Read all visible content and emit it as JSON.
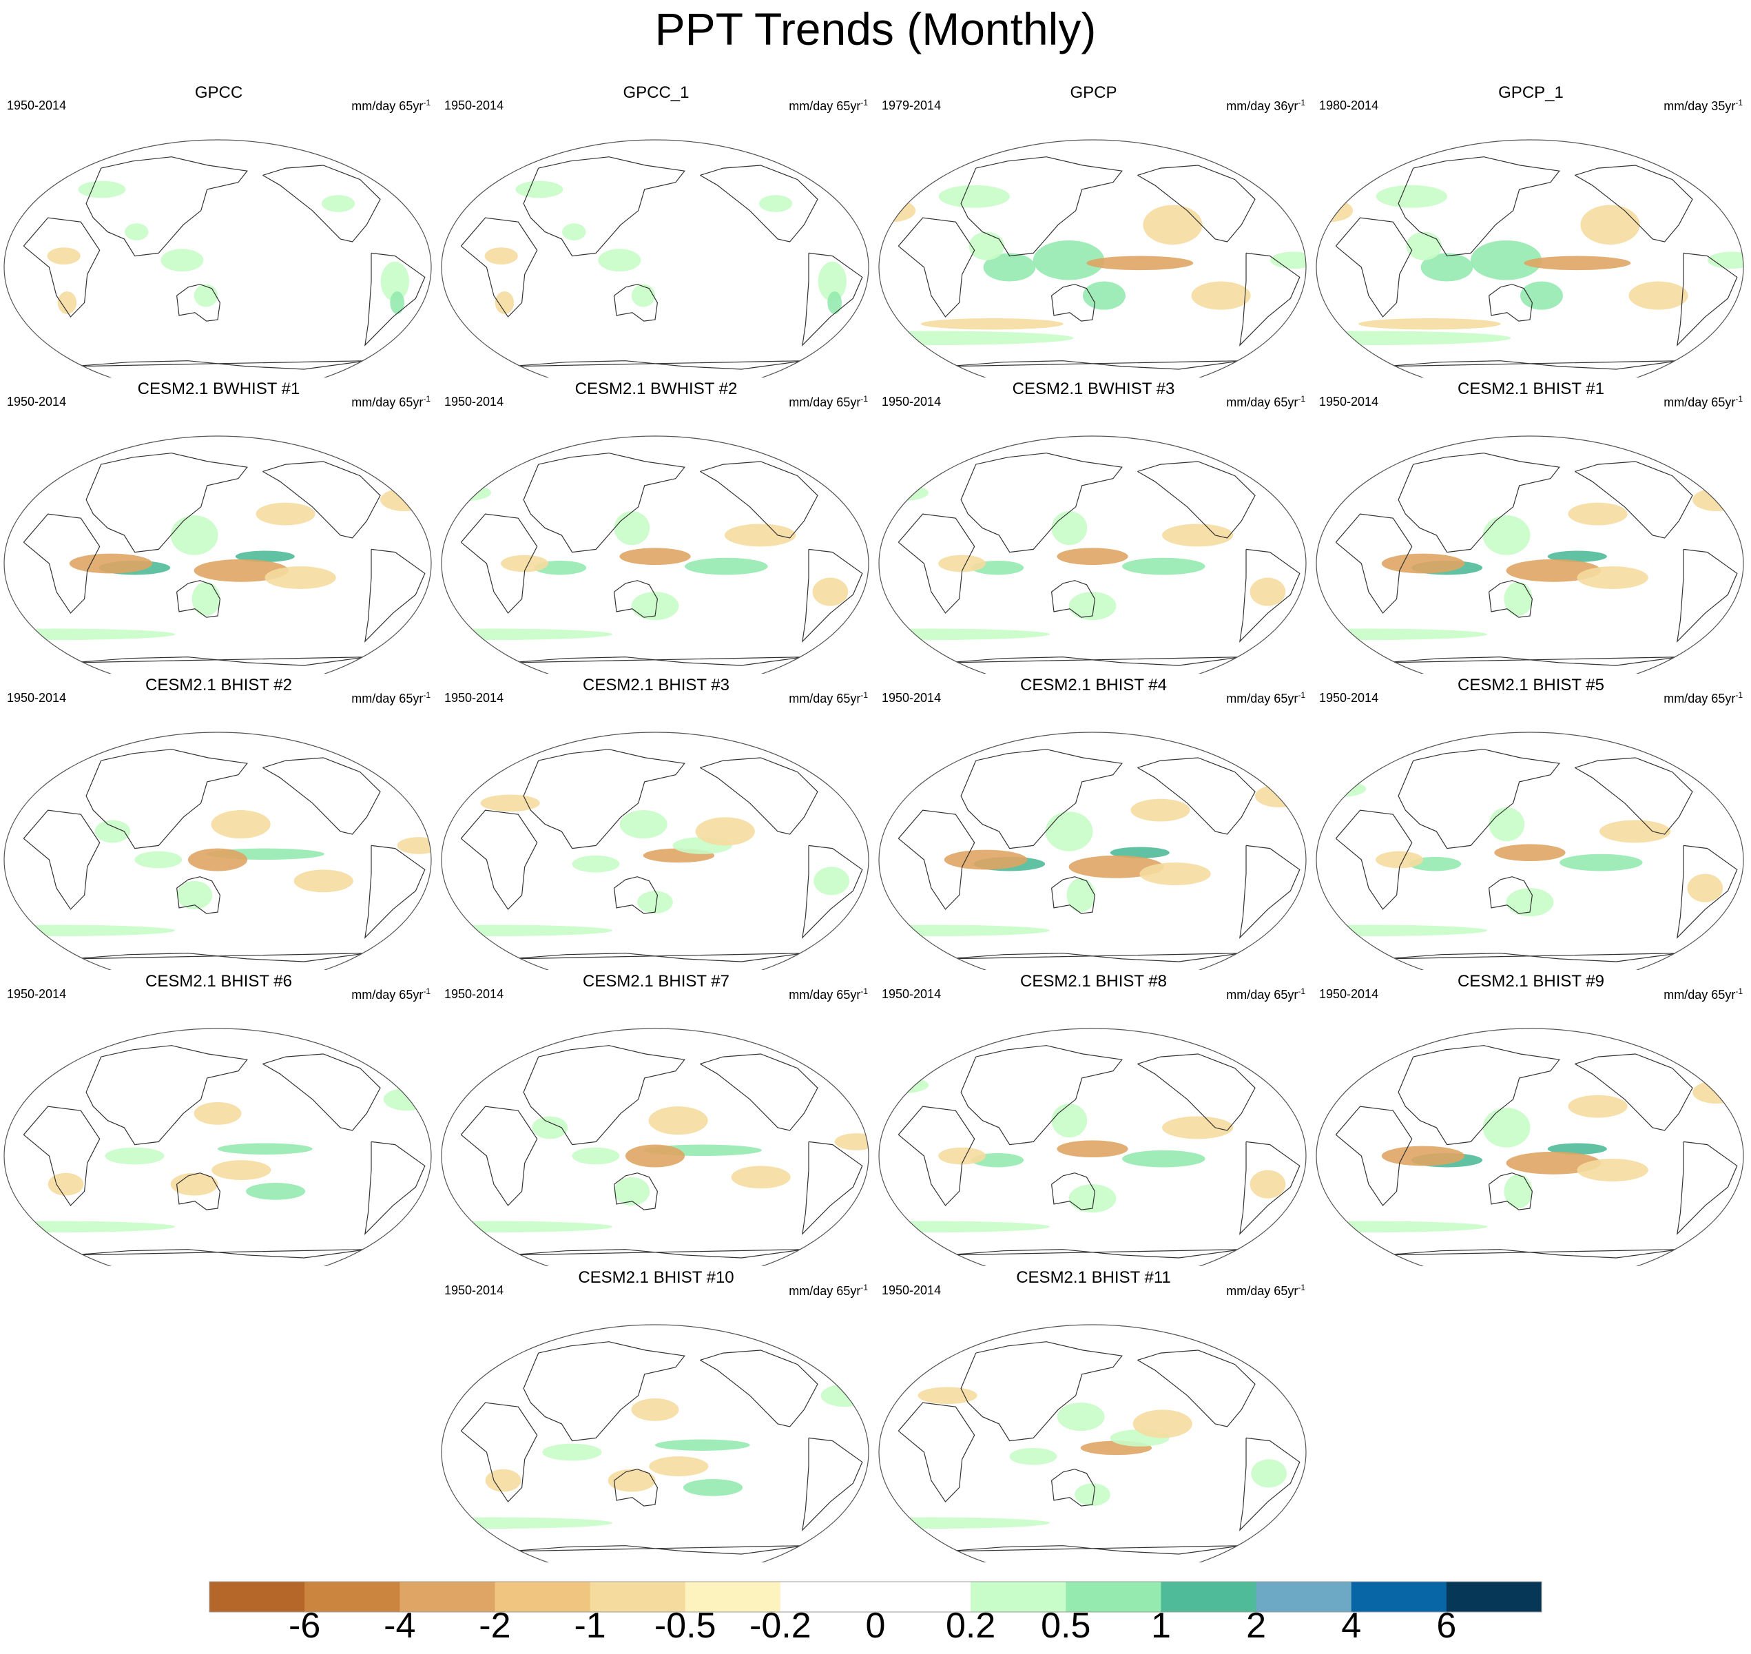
{
  "title": "PPT Trends (Monthly)",
  "panels": [
    {
      "title": "GPCC",
      "period": "1950-2014",
      "units": "mm/day 65yr",
      "units_exp": "-1",
      "pattern": "obs_gpcc"
    },
    {
      "title": "GPCC_1",
      "period": "1950-2014",
      "units": "mm/day 65yr",
      "units_exp": "-1",
      "pattern": "obs_gpcc"
    },
    {
      "title": "GPCP",
      "period": "1979-2014",
      "units": "mm/day 36yr",
      "units_exp": "-1",
      "pattern": "obs_gpcp"
    },
    {
      "title": "GPCP_1",
      "period": "1980-2014",
      "units": "mm/day 35yr",
      "units_exp": "-1",
      "pattern": "obs_gpcp"
    },
    {
      "title": "CESM2.1 BWHIST #1",
      "period": "1950-2014",
      "units": "mm/day 65yr",
      "units_exp": "-1",
      "pattern": "model_a"
    },
    {
      "title": "CESM2.1 BWHIST #2",
      "period": "1950-2014",
      "units": "mm/day 65yr",
      "units_exp": "-1",
      "pattern": "model_b"
    },
    {
      "title": "CESM2.1 BWHIST #3",
      "period": "1950-2014",
      "units": "mm/day 65yr",
      "units_exp": "-1",
      "pattern": "model_b"
    },
    {
      "title": "CESM2.1 BHIST #1",
      "period": "1950-2014",
      "units": "mm/day 65yr",
      "units_exp": "-1",
      "pattern": "model_a"
    },
    {
      "title": "CESM2.1 BHIST #2",
      "period": "1950-2014",
      "units": "mm/day 65yr",
      "units_exp": "-1",
      "pattern": "model_c"
    },
    {
      "title": "CESM2.1 BHIST #3",
      "period": "1950-2014",
      "units": "mm/day 65yr",
      "units_exp": "-1",
      "pattern": "model_d"
    },
    {
      "title": "CESM2.1 BHIST #4",
      "period": "1950-2014",
      "units": "mm/day 65yr",
      "units_exp": "-1",
      "pattern": "model_a"
    },
    {
      "title": "CESM2.1 BHIST #5",
      "period": "1950-2014",
      "units": "mm/day 65yr",
      "units_exp": "-1",
      "pattern": "model_b"
    },
    {
      "title": "CESM2.1 BHIST #6",
      "period": "1950-2014",
      "units": "mm/day 65yr",
      "units_exp": "-1",
      "pattern": "model_e"
    },
    {
      "title": "CESM2.1 BHIST #7",
      "period": "1950-2014",
      "units": "mm/day 65yr",
      "units_exp": "-1",
      "pattern": "model_c"
    },
    {
      "title": "CESM2.1 BHIST #8",
      "period": "1950-2014",
      "units": "mm/day 65yr",
      "units_exp": "-1",
      "pattern": "model_b"
    },
    {
      "title": "CESM2.1 BHIST #9",
      "period": "1950-2014",
      "units": "mm/day 65yr",
      "units_exp": "-1",
      "pattern": "model_a"
    },
    {
      "title": "CESM2.1 BHIST #10",
      "period": "1950-2014",
      "units": "mm/day 65yr",
      "units_exp": "-1",
      "pattern": "model_e"
    },
    {
      "title": "CESM2.1 BHIST #11",
      "period": "1950-2014",
      "units": "mm/day 65yr",
      "units_exp": "-1",
      "pattern": "model_d"
    }
  ],
  "colorbar": {
    "labels": [
      "-6",
      "-4",
      "-2",
      "-1",
      "-0.5",
      "-0.2",
      "0",
      "0.2",
      "0.5",
      "1",
      "2",
      "4",
      "6"
    ],
    "colors": [
      "#b5672a",
      "#cc853f",
      "#dfa564",
      "#efc57f",
      "#f5dc9e",
      "#fdf3bf",
      "#ffffff",
      "#ffffff",
      "#c8fcc8",
      "#95eab0",
      "#4fbb98",
      "#6da8c5",
      "#0866a6",
      "#063757"
    ]
  },
  "patterns": {
    "obs_gpcc": [
      {
        "lon": 120,
        "lat": 5,
        "rx": 18,
        "ry": 8,
        "level": 1
      },
      {
        "lon": 140,
        "lat": -20,
        "rx": 10,
        "ry": 8,
        "level": 1
      },
      {
        "lon": -60,
        "lat": -10,
        "rx": 12,
        "ry": 14,
        "level": 1
      },
      {
        "lon": 20,
        "lat": 8,
        "rx": 14,
        "ry": 6,
        "level": -1
      },
      {
        "lon": -55,
        "lat": -25,
        "rx": 6,
        "ry": 8,
        "level": 2
      },
      {
        "lon": 80,
        "lat": 25,
        "rx": 10,
        "ry": 6,
        "level": 1
      },
      {
        "lon": -100,
        "lat": 45,
        "rx": 14,
        "ry": 6,
        "level": 1
      },
      {
        "lon": 40,
        "lat": 55,
        "rx": 20,
        "ry": 6,
        "level": 1
      },
      {
        "lon": 20,
        "lat": -25,
        "rx": 8,
        "ry": 8,
        "level": -1
      }
    ],
    "obs_gpcp": [
      {
        "lon": 130,
        "lat": 5,
        "rx": 30,
        "ry": 14,
        "level": 2
      },
      {
        "lon": 80,
        "lat": 0,
        "rx": 22,
        "ry": 10,
        "level": 2
      },
      {
        "lon": -170,
        "lat": 3,
        "rx": 45,
        "ry": 5,
        "level": -2
      },
      {
        "lon": -140,
        "lat": 30,
        "rx": 25,
        "ry": 14,
        "level": -1
      },
      {
        "lon": 160,
        "lat": -20,
        "rx": 18,
        "ry": 10,
        "level": 2
      },
      {
        "lon": -40,
        "lat": 5,
        "rx": 20,
        "ry": 6,
        "level": 1
      },
      {
        "lon": 0,
        "lat": -50,
        "rx": 120,
        "ry": 5,
        "level": 1
      },
      {
        "lon": 60,
        "lat": -40,
        "rx": 60,
        "ry": 4,
        "level": -1
      },
      {
        "lon": -100,
        "lat": -20,
        "rx": 25,
        "ry": 10,
        "level": -1
      },
      {
        "lon": 40,
        "lat": 50,
        "rx": 30,
        "ry": 8,
        "level": 1
      },
      {
        "lon": -30,
        "lat": 40,
        "rx": 20,
        "ry": 8,
        "level": -1
      },
      {
        "lon": 60,
        "lat": 15,
        "rx": 15,
        "ry": 10,
        "level": 1
      }
    ],
    "model_a": [
      {
        "lon": 80,
        "lat": -3,
        "rx": 30,
        "ry": 5,
        "level": 3
      },
      {
        "lon": 60,
        "lat": 0,
        "rx": 35,
        "ry": 7,
        "level": -2
      },
      {
        "lon": -170,
        "lat": 5,
        "rx": 25,
        "ry": 4,
        "level": 3
      },
      {
        "lon": 170,
        "lat": -5,
        "rx": 40,
        "ry": 8,
        "level": -2
      },
      {
        "lon": -140,
        "lat": -10,
        "rx": 30,
        "ry": 8,
        "level": -1
      },
      {
        "lon": 130,
        "lat": 20,
        "rx": 20,
        "ry": 14,
        "level": 1
      },
      {
        "lon": 140,
        "lat": -25,
        "rx": 12,
        "ry": 12,
        "level": 1
      },
      {
        "lon": 0,
        "lat": -50,
        "rx": 100,
        "ry": 4,
        "level": 1
      },
      {
        "lon": -40,
        "lat": 45,
        "rx": 20,
        "ry": 8,
        "level": -1
      },
      {
        "lon": -150,
        "lat": 35,
        "rx": 25,
        "ry": 8,
        "level": -1
      }
    ],
    "model_b": [
      {
        "lon": -150,
        "lat": -2,
        "rx": 35,
        "ry": 6,
        "level": 2
      },
      {
        "lon": 150,
        "lat": 5,
        "rx": 30,
        "ry": 6,
        "level": -2
      },
      {
        "lon": 70,
        "lat": -3,
        "rx": 22,
        "ry": 5,
        "level": 2
      },
      {
        "lon": 40,
        "lat": 0,
        "rx": 20,
        "ry": 6,
        "level": -1
      },
      {
        "lon": 130,
        "lat": 25,
        "rx": 15,
        "ry": 12,
        "level": 1
      },
      {
        "lon": -120,
        "lat": 20,
        "rx": 30,
        "ry": 8,
        "level": -1
      },
      {
        "lon": 150,
        "lat": -30,
        "rx": 20,
        "ry": 10,
        "level": 1
      },
      {
        "lon": 0,
        "lat": -50,
        "rx": 100,
        "ry": 4,
        "level": 1
      },
      {
        "lon": -60,
        "lat": -20,
        "rx": 15,
        "ry": 10,
        "level": -1
      },
      {
        "lon": -30,
        "lat": 50,
        "rx": 25,
        "ry": 6,
        "level": 1
      }
    ],
    "model_c": [
      {
        "lon": -170,
        "lat": 4,
        "rx": 50,
        "ry": 4,
        "level": 2
      },
      {
        "lon": 150,
        "lat": 0,
        "rx": 25,
        "ry": 8,
        "level": -2
      },
      {
        "lon": 100,
        "lat": 0,
        "rx": 20,
        "ry": 6,
        "level": 1
      },
      {
        "lon": 170,
        "lat": 25,
        "rx": 25,
        "ry": 10,
        "level": -1
      },
      {
        "lon": 130,
        "lat": -25,
        "rx": 15,
        "ry": 10,
        "level": 1
      },
      {
        "lon": 60,
        "lat": 20,
        "rx": 15,
        "ry": 8,
        "level": 1
      },
      {
        "lon": 0,
        "lat": -50,
        "rx": 100,
        "ry": 4,
        "level": 1
      },
      {
        "lon": -40,
        "lat": 10,
        "rx": 18,
        "ry": 6,
        "level": -1
      },
      {
        "lon": -120,
        "lat": -15,
        "rx": 25,
        "ry": 8,
        "level": -1
      }
    ],
    "model_d": [
      {
        "lon": 170,
        "lat": 3,
        "rx": 30,
        "ry": 5,
        "level": -2
      },
      {
        "lon": -170,
        "lat": 10,
        "rx": 25,
        "ry": 6,
        "level": 1
      },
      {
        "lon": 100,
        "lat": -3,
        "rx": 20,
        "ry": 6,
        "level": 1
      },
      {
        "lon": -150,
        "lat": 20,
        "rx": 25,
        "ry": 10,
        "level": -1
      },
      {
        "lon": 140,
        "lat": 25,
        "rx": 20,
        "ry": 10,
        "level": 1
      },
      {
        "lon": 150,
        "lat": -30,
        "rx": 15,
        "ry": 8,
        "level": 1
      },
      {
        "lon": 0,
        "lat": -50,
        "rx": 100,
        "ry": 4,
        "level": 1
      },
      {
        "lon": 20,
        "lat": 40,
        "rx": 25,
        "ry": 6,
        "level": -1
      },
      {
        "lon": -60,
        "lat": -15,
        "rx": 15,
        "ry": 10,
        "level": 1
      }
    ],
    "model_e": [
      {
        "lon": -170,
        "lat": 5,
        "rx": 40,
        "ry": 4,
        "level": 2
      },
      {
        "lon": 170,
        "lat": -10,
        "rx": 25,
        "ry": 7,
        "level": -1
      },
      {
        "lon": -160,
        "lat": -25,
        "rx": 25,
        "ry": 6,
        "level": 2
      },
      {
        "lon": 80,
        "lat": 0,
        "rx": 25,
        "ry": 6,
        "level": 1
      },
      {
        "lon": 130,
        "lat": -20,
        "rx": 20,
        "ry": 8,
        "level": -1
      },
      {
        "lon": 150,
        "lat": 30,
        "rx": 20,
        "ry": 8,
        "level": -1
      },
      {
        "lon": 0,
        "lat": -50,
        "rx": 100,
        "ry": 4,
        "level": 1
      },
      {
        "lon": -40,
        "lat": 40,
        "rx": 20,
        "ry": 8,
        "level": 1
      },
      {
        "lon": 20,
        "lat": -20,
        "rx": 15,
        "ry": 8,
        "level": -1
      }
    ]
  }
}
